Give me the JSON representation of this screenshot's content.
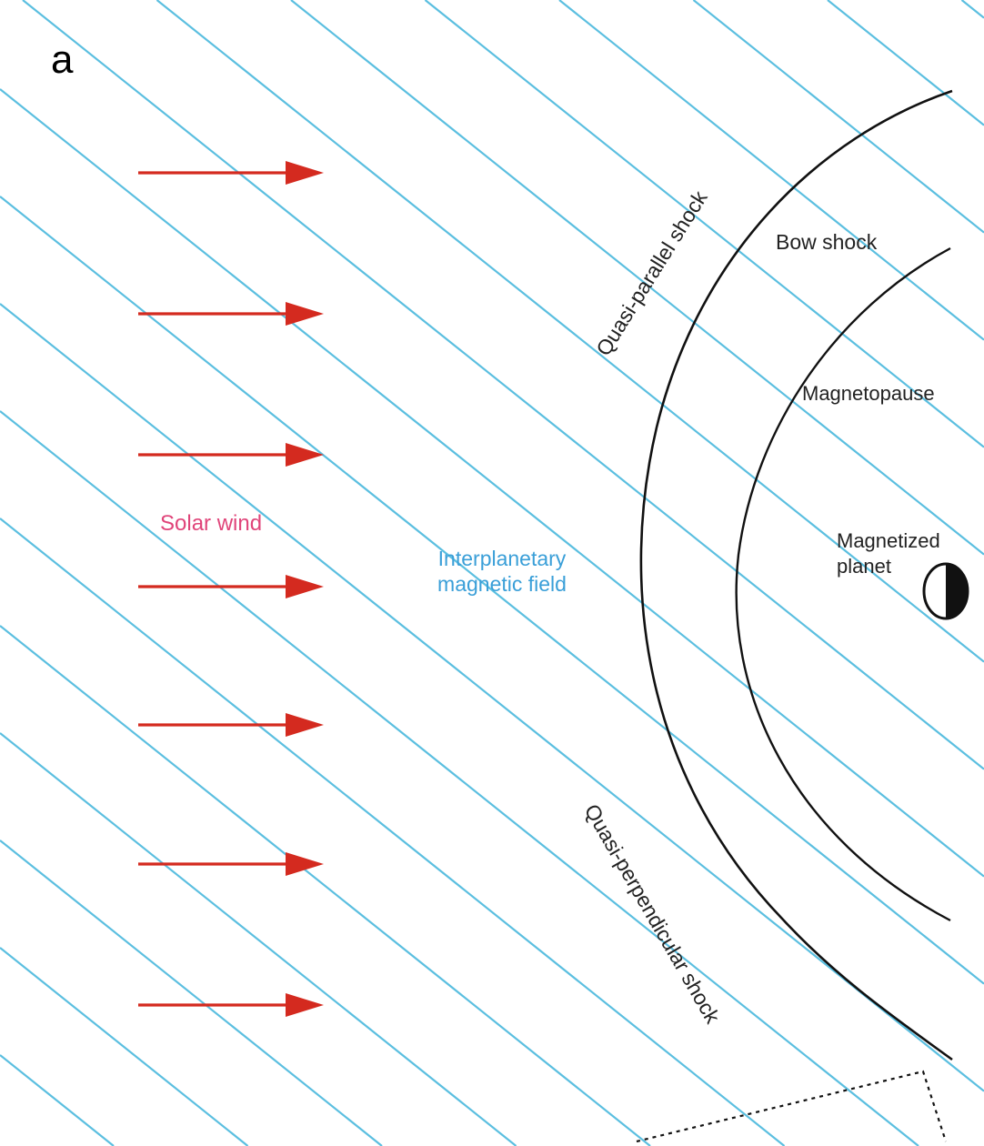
{
  "panel_label": "a",
  "labels": {
    "bow_shock": "Bow shock",
    "magnetopause": "Magnetopause",
    "planet_line1": "Magnetized",
    "planet_line2": "planet",
    "solar_wind": "Solar wind",
    "imf_line1": "Interplanetary",
    "imf_line2": "magnetic field",
    "quasi_parallel": "Quasi-parallel shock",
    "quasi_perpendicular": "Quasi-perpendicular shock"
  },
  "colors": {
    "field_lines": "#5bbfe0",
    "arrows": "#d42a1f",
    "solar_wind_text": "#e0457a",
    "imf_text": "#3a9fd8",
    "boundaries": "#111111"
  },
  "icons": {
    "planet": "half-shaded-circle-icon",
    "flow": "arrow-right-icon"
  }
}
